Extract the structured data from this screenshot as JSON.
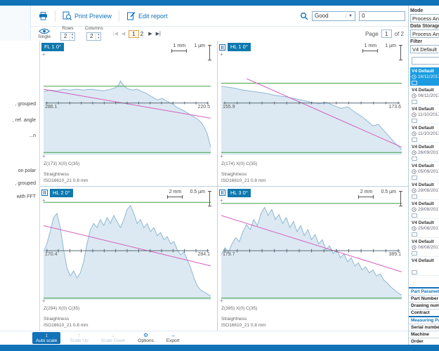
{
  "colors": {
    "accent": "#1272b8",
    "badge": "#0f78ad",
    "selected_item": "#1b9ce0",
    "tolerance_green": "#3fa24a",
    "regression_pink": "#d45cc0",
    "profile_fill": "#dce9f2",
    "profile_stroke": "#8fb8d4",
    "current_page_border": "#d9a44a"
  },
  "icons": {
    "printer": "printer-icon",
    "print_preview": "print-preview-icon",
    "edit_report": "edit-report-icon",
    "search": "search-icon",
    "eye": "eye-icon",
    "clock": "clock-icon",
    "note": "note-icon",
    "cross": "+",
    "pagination_first": "|◀",
    "pagination_prev": "◀",
    "pagination_next": "▶",
    "pagination_last": "▶|"
  },
  "toolbar": {
    "print_preview": "Print Preview",
    "edit_report": "Edit report",
    "search_filter_value": "Good",
    "search_text_value": "0",
    "view_single": "Single",
    "rows_label": "Rows",
    "rows_value": "2",
    "columns_label": "Columns",
    "columns_value": "2",
    "pagination": {
      "pages": [
        "1",
        "2"
      ],
      "current": "1"
    },
    "page_indicator": {
      "label": "Page",
      "value": "1",
      "suffix": "of 2"
    }
  },
  "sidebar_left": {
    "fragments": [
      ", grouped",
      ", ref. angle",
      "...n",
      "on polar",
      ", grouped",
      "with FFT"
    ]
  },
  "right_panel": {
    "mode_label": "Mode",
    "mode_value": "Process Analyzer",
    "data_storage_label": "Data Storage",
    "data_storage_value": "Process Analyzer",
    "filter_label": "Filter",
    "filter_value": "V4 Default",
    "search_value": "",
    "results": [
      {
        "name": "V4 Default",
        "date": "16/11/2017",
        "selected": true
      },
      {
        "name": "V4 Default",
        "date": "06/11/2017",
        "selected": false
      },
      {
        "name": "V4 Default",
        "date": "11/10/2017",
        "selected": false
      },
      {
        "name": "V4 Default",
        "date": "11/10/2017",
        "selected": false
      },
      {
        "name": "V4 Default",
        "date": "26/09/2017",
        "selected": false
      },
      {
        "name": "V4 Default",
        "date": "05/09/2017",
        "selected": false
      },
      {
        "name": "V4 Default",
        "date": "29/08/2017",
        "selected": false
      },
      {
        "name": "V4 Default",
        "date": "29/08/2017",
        "selected": false
      },
      {
        "name": "V4 Default",
        "date": "25/08/2017",
        "selected": false
      },
      {
        "name": "V4 Default",
        "date": "08/08/2017",
        "selected": false
      },
      {
        "name": "V4 Default",
        "date": "",
        "selected": false
      }
    ],
    "part_table": {
      "sections": [
        {
          "header": "Part Parameters",
          "rows": [
            "Part Number",
            "Drawing number",
            "Contract"
          ]
        },
        {
          "header": "Measuring Parameters",
          "rows": [
            "Serial number",
            "Machine",
            "Order"
          ]
        }
      ]
    }
  },
  "bottom_toolbar": {
    "buttons": [
      {
        "label": "Auto scale",
        "icon": "auto-scale-icon",
        "glyph": "↕",
        "state": "active"
      },
      {
        "label": "Scale Up",
        "icon": "scale-up-icon",
        "glyph": "↑",
        "state": "disabled"
      },
      {
        "label": "Scale Down",
        "icon": "scale-down-icon",
        "glyph": "↓",
        "state": "disabled"
      },
      {
        "label": "Options",
        "icon": "gear-icon",
        "glyph": "⚙",
        "state": "normal"
      },
      {
        "label": "Export",
        "icon": "export-icon",
        "glyph": "→",
        "state": "normal"
      }
    ]
  },
  "chart_data": [
    {
      "type": "area",
      "badge": "FL 1 0°",
      "marker": false,
      "x_scale": "1 mm",
      "y_scale": "1 µm",
      "axis_start_value": "286.1",
      "axis_end_value": "220.5",
      "position_label": "Z(173) X(0) C(35)",
      "parameter_label": "Straightness",
      "filter_label": "ISO16610_21  0.8 mm",
      "axis_y_pct": 32,
      "green_top_pct": 10,
      "green_bottom_pct": 97,
      "pink_line": [
        [
          0,
          14
        ],
        [
          100,
          52
        ]
      ],
      "profile": [
        [
          0,
          17
        ],
        [
          4,
          15
        ],
        [
          8,
          16
        ],
        [
          12,
          14
        ],
        [
          16,
          15
        ],
        [
          20,
          14
        ],
        [
          24,
          15
        ],
        [
          28,
          14
        ],
        [
          32,
          15
        ],
        [
          36,
          16
        ],
        [
          40,
          14
        ],
        [
          43,
          12
        ],
        [
          45,
          8
        ],
        [
          46,
          3
        ],
        [
          48,
          9
        ],
        [
          50,
          13
        ],
        [
          53,
          15
        ],
        [
          56,
          14
        ],
        [
          59,
          17
        ],
        [
          62,
          20
        ],
        [
          65,
          24
        ],
        [
          68,
          28
        ],
        [
          71,
          26
        ],
        [
          74,
          30
        ],
        [
          77,
          33
        ],
        [
          80,
          38
        ],
        [
          83,
          41
        ],
        [
          86,
          45
        ],
        [
          89,
          49
        ],
        [
          92,
          53
        ],
        [
          94,
          57
        ],
        [
          96,
          63
        ],
        [
          98,
          73
        ],
        [
          100,
          90
        ]
      ]
    },
    {
      "type": "area",
      "badge": "HL 1 0°",
      "marker": true,
      "x_scale": "1 mm",
      "y_scale": "1 µm",
      "axis_start_value": "155.9",
      "axis_end_value": "173.6",
      "position_label": "Z(174) X(0) C(35)",
      "parameter_label": "Straightness",
      "filter_label": "ISO16610_21  0.8 mm",
      "axis_y_pct": 32,
      "green_top_pct": 6,
      "green_bottom_pct": 97,
      "pink_line": [
        [
          14,
          0
        ],
        [
          100,
          90
        ]
      ],
      "profile": [
        [
          0,
          10
        ],
        [
          6,
          12
        ],
        [
          12,
          15
        ],
        [
          18,
          17
        ],
        [
          24,
          19
        ],
        [
          30,
          22
        ],
        [
          36,
          24
        ],
        [
          42,
          27
        ],
        [
          48,
          30
        ],
        [
          54,
          33
        ],
        [
          58,
          31
        ],
        [
          62,
          35
        ],
        [
          66,
          39
        ],
        [
          70,
          37
        ],
        [
          74,
          44
        ],
        [
          78,
          50
        ],
        [
          81,
          56
        ],
        [
          84,
          62
        ],
        [
          87,
          60
        ],
        [
          90,
          68
        ],
        [
          93,
          76
        ],
        [
          96,
          84
        ],
        [
          100,
          93
        ]
      ]
    },
    {
      "type": "area",
      "badge": "HL 2 0°",
      "marker": true,
      "x_scale": "2 mm",
      "y_scale": "0.5 µm",
      "axis_start_value": "170.4",
      "axis_end_value": "284.1",
      "position_label": "Z(294) X(0) C(35)",
      "parameter_label": "Straightness",
      "filter_label": "ISO16610_21  0.8 mm",
      "axis_y_pct": 51,
      "green_top_pct": 3,
      "green_bottom_pct": 98,
      "pink_line": [
        [
          0,
          26
        ],
        [
          100,
          66
        ]
      ],
      "profile": [
        [
          0,
          52
        ],
        [
          2,
          44
        ],
        [
          4,
          32
        ],
        [
          6,
          18
        ],
        [
          8,
          14
        ],
        [
          10,
          28
        ],
        [
          12,
          50
        ],
        [
          14,
          68
        ],
        [
          16,
          76
        ],
        [
          18,
          71
        ],
        [
          20,
          78
        ],
        [
          22,
          73
        ],
        [
          24,
          62
        ],
        [
          26,
          44
        ],
        [
          28,
          30
        ],
        [
          30,
          24
        ],
        [
          32,
          28
        ],
        [
          34,
          20
        ],
        [
          36,
          26
        ],
        [
          38,
          18
        ],
        [
          40,
          24
        ],
        [
          42,
          16
        ],
        [
          44,
          22
        ],
        [
          46,
          28
        ],
        [
          48,
          20
        ],
        [
          50,
          10
        ],
        [
          52,
          6
        ],
        [
          54,
          14
        ],
        [
          56,
          24
        ],
        [
          58,
          20
        ],
        [
          60,
          28
        ],
        [
          62,
          24
        ],
        [
          64,
          32
        ],
        [
          66,
          28
        ],
        [
          68,
          36
        ],
        [
          70,
          33
        ],
        [
          72,
          40
        ],
        [
          74,
          37
        ],
        [
          76,
          44
        ],
        [
          78,
          42
        ],
        [
          80,
          50
        ],
        [
          82,
          55
        ],
        [
          84,
          52
        ],
        [
          86,
          60
        ],
        [
          88,
          68
        ],
        [
          90,
          78
        ],
        [
          92,
          86
        ],
        [
          94,
          90
        ],
        [
          97,
          93
        ],
        [
          100,
          96
        ]
      ]
    },
    {
      "type": "area",
      "badge": "HL 3 0°",
      "marker": true,
      "x_scale": "2 mm",
      "y_scale": "0.5 µm",
      "axis_start_value": "179.7",
      "axis_end_value": "389.1",
      "position_label": "Z(395) X(0) C(35)",
      "parameter_label": "Straightness",
      "filter_label": "ISO16610_21  0.8 mm",
      "axis_y_pct": 51,
      "green_top_pct": 4,
      "green_bottom_pct": 98,
      "pink_line": [
        [
          0,
          16
        ],
        [
          100,
          72
        ]
      ],
      "profile": [
        [
          0,
          55
        ],
        [
          2,
          48
        ],
        [
          4,
          52
        ],
        [
          6,
          44
        ],
        [
          8,
          38
        ],
        [
          10,
          42
        ],
        [
          12,
          32
        ],
        [
          14,
          25
        ],
        [
          16,
          30
        ],
        [
          18,
          20
        ],
        [
          20,
          26
        ],
        [
          22,
          14
        ],
        [
          24,
          8
        ],
        [
          26,
          16
        ],
        [
          28,
          10
        ],
        [
          30,
          20
        ],
        [
          32,
          15
        ],
        [
          34,
          24
        ],
        [
          36,
          18
        ],
        [
          38,
          28
        ],
        [
          40,
          22
        ],
        [
          42,
          32
        ],
        [
          44,
          26
        ],
        [
          46,
          36
        ],
        [
          48,
          30
        ],
        [
          50,
          40
        ],
        [
          52,
          35
        ],
        [
          54,
          44
        ],
        [
          56,
          40
        ],
        [
          58,
          50
        ],
        [
          60,
          46
        ],
        [
          62,
          54
        ],
        [
          64,
          50
        ],
        [
          66,
          58
        ],
        [
          68,
          54
        ],
        [
          70,
          62
        ],
        [
          72,
          58
        ],
        [
          74,
          66
        ],
        [
          76,
          63
        ],
        [
          78,
          70
        ],
        [
          80,
          67
        ],
        [
          82,
          73
        ],
        [
          84,
          70
        ],
        [
          86,
          76
        ],
        [
          88,
          74
        ],
        [
          90,
          80
        ],
        [
          92,
          83
        ],
        [
          94,
          87
        ],
        [
          96,
          90
        ],
        [
          98,
          93
        ],
        [
          100,
          95
        ]
      ]
    }
  ]
}
